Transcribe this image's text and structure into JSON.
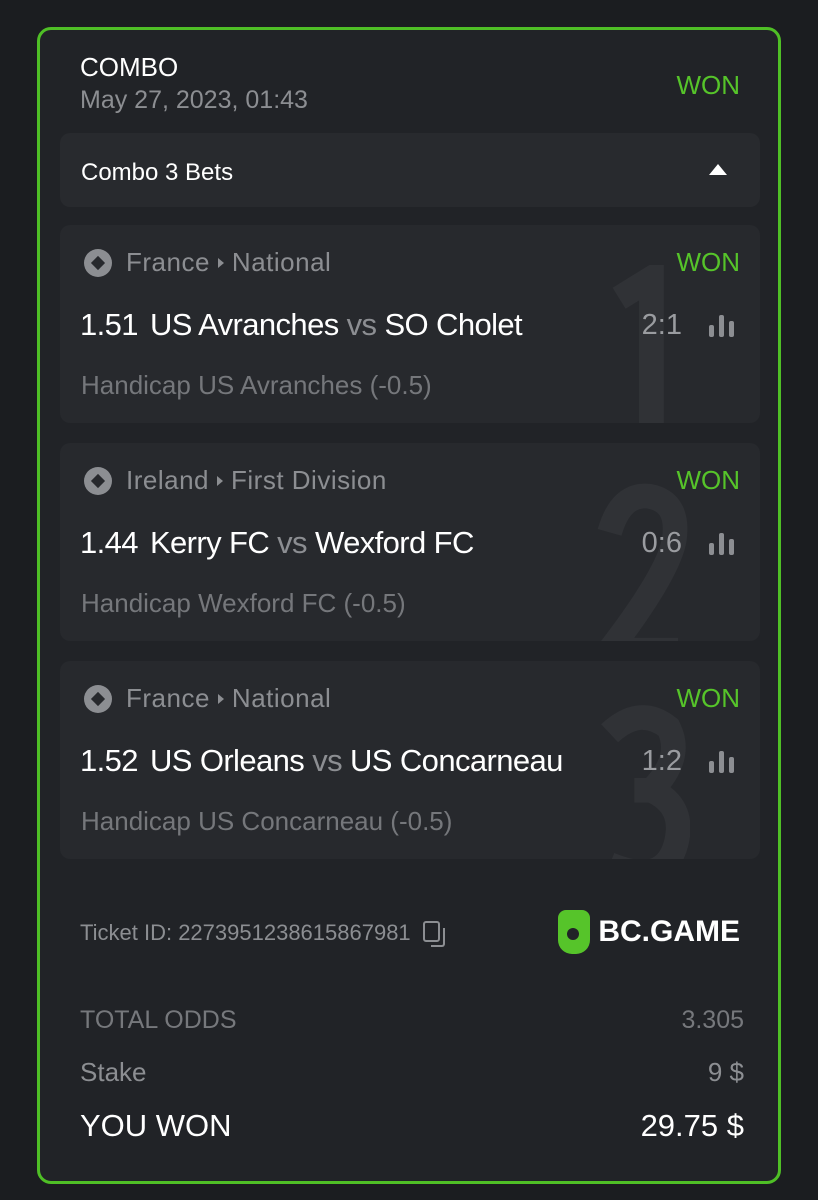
{
  "ticket": {
    "type": "COMBO",
    "date": "May 27, 2023, 01:43",
    "status": "WON"
  },
  "combo_label": "Combo 3 Bets",
  "legs": [
    {
      "index": "1",
      "country": "France",
      "league": "National",
      "status": "WON",
      "odds": "1.51",
      "home": "US Avranches",
      "vs": "vs",
      "away": "SO Cholet",
      "score": "2:1",
      "market": "Handicap US Avranches (-0.5)"
    },
    {
      "index": "2",
      "country": "Ireland",
      "league": "First Division",
      "status": "WON",
      "odds": "1.44",
      "home": "Kerry FC",
      "vs": "vs",
      "away": "Wexford FC",
      "score": "0:6",
      "market": "Handicap Wexford FC (-0.5)"
    },
    {
      "index": "3",
      "country": "France",
      "league": "National",
      "status": "WON",
      "odds": "1.52",
      "home": "US Orleans",
      "vs": "vs",
      "away": "US Concarneau",
      "score": "1:2",
      "market": "Handicap US Concarneau (-0.5)"
    }
  ],
  "ticket_id": "Ticket ID: 2273951238615867981",
  "brand": "BC.GAME",
  "totals": {
    "odds_label": "TOTAL ODDS",
    "odds": "3.305",
    "stake_label": "Stake",
    "stake": "9 $",
    "won_label": "YOU WON",
    "won": "29.75 $"
  },
  "colors": {
    "accent": "#56c42a",
    "background": "#212327"
  }
}
